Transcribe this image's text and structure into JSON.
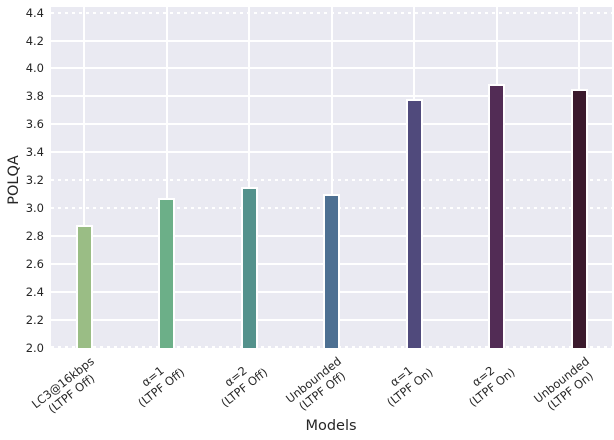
{
  "chart_data": {
    "type": "bar",
    "title": "",
    "xlabel": "Models",
    "ylabel": "POLQA",
    "categories": [
      [
        "LC3@16kbps",
        "(LTPF Off)"
      ],
      [
        "α=1",
        "(LTPF Off)"
      ],
      [
        "α=2",
        "(LTPF Off)"
      ],
      [
        "Unbounded",
        "(LTPF Off)"
      ],
      [
        "α=1",
        "(LTPF On)"
      ],
      [
        "α=2",
        "(LTPF On)"
      ],
      [
        "Unbounded",
        "(LTPF On)"
      ]
    ],
    "values": [
      2.88,
      3.07,
      3.15,
      3.1,
      3.78,
      3.89,
      3.85
    ],
    "bar_colors": [
      "#9abd85",
      "#6caf88",
      "#54928c",
      "#4d7092",
      "#504a7c",
      "#522c55",
      "#3b1a2d"
    ],
    "ylim": [
      2.0,
      4.44
    ],
    "yticks": [
      2.0,
      2.2,
      2.4,
      2.6,
      2.8,
      3.0,
      3.2,
      3.4,
      3.6,
      3.8,
      4.0,
      4.2,
      4.4
    ],
    "dashed_gridline_values": [
      2.0,
      3.0,
      3.2,
      4.4
    ],
    "grid": "on",
    "legend": "none",
    "plot_bg_color": "#eaeaf2",
    "grid_color": "#ffffff",
    "text_color": "#262626"
  }
}
